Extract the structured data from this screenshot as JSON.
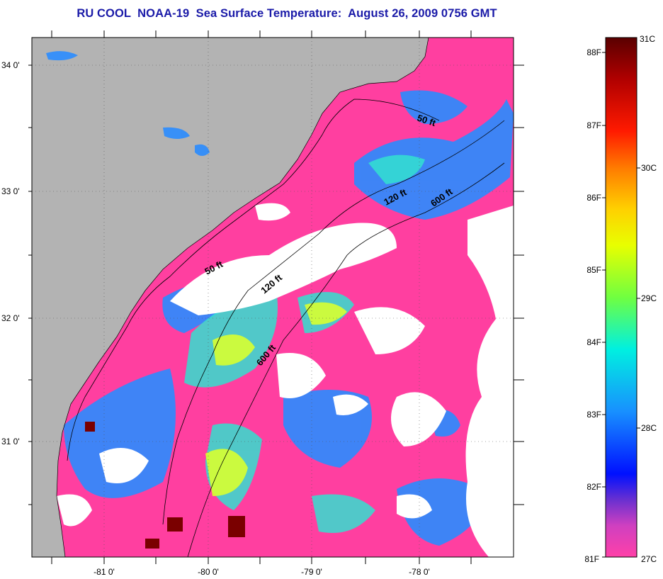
{
  "title": "RU COOL  NOAA-19  Sea Surface Temperature:  August 26, 2009 0756 GMT",
  "map": {
    "lat_labels": [
      "34 0'",
      "33 0'",
      "32 0'",
      "31 0'"
    ],
    "lon_labels": [
      "-81 0'",
      "-80 0'",
      "-79 0'",
      "-78 0'"
    ],
    "land_color": "#b3b3b3",
    "cloud_color": "#ffffff",
    "coolest_water_color": "#ff3fa0",
    "contour_labels": [
      "50 ft",
      "50 ft",
      "120 ft",
      "120 ft",
      "600 ft",
      "600 ft"
    ]
  },
  "colorbar": {
    "fahrenheit_labels": [
      "88F",
      "87F",
      "86F",
      "85F",
      "84F",
      "83F",
      "82F",
      "81F"
    ],
    "celsius_labels": [
      "31C",
      "30C",
      "29C",
      "28C",
      "27C"
    ]
  }
}
